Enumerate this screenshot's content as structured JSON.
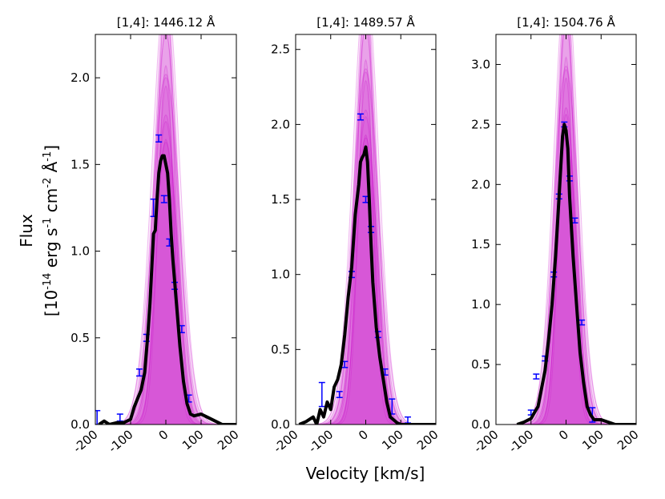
{
  "figure": {
    "xlabel": "Velocity [km/s]",
    "ylabel_line1": "Flux",
    "ylabel_line2_prefix": "[10",
    "ylabel_exp1": "-14",
    "ylabel_mid1": " erg s",
    "ylabel_exp2": "-1",
    "ylabel_mid2": " cm",
    "ylabel_exp3": "-2",
    "ylabel_mid3": " Å",
    "ylabel_exp4": "-1",
    "ylabel_suffix": "]"
  },
  "colors": {
    "model_band": "#cc00cc",
    "observed": "#000000",
    "error_bars": "#0000ff"
  },
  "chart_data": [
    {
      "type": "line",
      "title": "[1,4]: 1446.12 Å",
      "xlim": [
        -200,
        200
      ],
      "ylim": [
        0,
        2.25
      ],
      "xticks": [
        "-200",
        "-100",
        "0",
        "100",
        "200"
      ],
      "yticks": [
        "0.0",
        "0.5",
        "1.0",
        "1.5",
        "2.0"
      ],
      "model_peak": 2.3,
      "model_width": 40,
      "observed": {
        "x": [
          -190,
          -175,
          -160,
          -140,
          -120,
          -100,
          -90,
          -80,
          -70,
          -60,
          -50,
          -45,
          -40,
          -35,
          -30,
          -25,
          -20,
          -15,
          -10,
          -5,
          0,
          5,
          10,
          15,
          20,
          30,
          40,
          50,
          60,
          70,
          80,
          100,
          120,
          140,
          160,
          180,
          200
        ],
        "y": [
          0.0,
          0.02,
          0.0,
          0.01,
          0.01,
          0.03,
          0.1,
          0.15,
          0.2,
          0.3,
          0.55,
          0.7,
          0.9,
          1.1,
          1.12,
          1.3,
          1.45,
          1.52,
          1.55,
          1.55,
          1.5,
          1.45,
          1.3,
          1.1,
          0.95,
          0.7,
          0.45,
          0.25,
          0.12,
          0.06,
          0.05,
          0.06,
          0.04,
          0.02,
          0.0,
          0.0,
          0.0
        ]
      },
      "errorbars": {
        "x": [
          -195,
          -130,
          -75,
          -55,
          -35,
          -20,
          -5,
          10,
          25,
          45,
          65
        ],
        "y": [
          0.04,
          0.04,
          0.3,
          0.5,
          1.25,
          1.65,
          1.3,
          1.05,
          0.8,
          0.55,
          0.15
        ],
        "err": [
          0.04,
          0.02,
          0.02,
          0.02,
          0.05,
          0.02,
          0.02,
          0.02,
          0.02,
          0.02,
          0.02
        ]
      }
    },
    {
      "type": "line",
      "title": "[1,4]: 1489.57 Å",
      "xlim": [
        -200,
        200
      ],
      "ylim": [
        0,
        2.6
      ],
      "xticks": [
        "-200",
        "-100",
        "0",
        "100",
        "200"
      ],
      "yticks": [
        "0.0",
        "0.5",
        "1.0",
        "1.5",
        "2.0",
        "2.5"
      ],
      "model_peak": 2.7,
      "model_width": 38,
      "observed": {
        "x": [
          -190,
          -170,
          -150,
          -140,
          -130,
          -120,
          -110,
          -100,
          -90,
          -80,
          -70,
          -60,
          -50,
          -40,
          -30,
          -20,
          -15,
          -10,
          -5,
          0,
          5,
          10,
          15,
          20,
          30,
          40,
          50,
          60,
          70,
          80,
          90,
          100,
          120,
          140,
          160,
          200
        ],
        "y": [
          0.0,
          0.02,
          0.05,
          0.0,
          0.1,
          0.05,
          0.15,
          0.1,
          0.25,
          0.3,
          0.4,
          0.6,
          0.85,
          1.05,
          1.4,
          1.6,
          1.75,
          1.78,
          1.8,
          1.85,
          1.75,
          1.5,
          1.2,
          0.95,
          0.65,
          0.45,
          0.3,
          0.15,
          0.05,
          0.03,
          0.01,
          0.0,
          0.0,
          0.0,
          0.0,
          0.0
        ]
      },
      "errorbars": {
        "x": [
          -125,
          -75,
          -60,
          -40,
          -15,
          0,
          15,
          35,
          55,
          75,
          120
        ],
        "y": [
          0.2,
          0.2,
          0.4,
          1.0,
          2.05,
          1.5,
          1.3,
          0.6,
          0.35,
          0.12,
          0.03
        ],
        "err": [
          0.08,
          0.02,
          0.02,
          0.02,
          0.02,
          0.02,
          0.02,
          0.02,
          0.02,
          0.05,
          0.02
        ]
      }
    },
    {
      "type": "line",
      "title": "[1,4]: 1504.76 Å",
      "xlim": [
        -200,
        200
      ],
      "ylim": [
        0,
        3.25
      ],
      "xticks": [
        "-200",
        "-100",
        "0",
        "100",
        "200"
      ],
      "yticks": [
        "0.0",
        "0.5",
        "1.0",
        "1.5",
        "2.0",
        "2.5",
        "3.0"
      ],
      "model_peak": 3.4,
      "model_width": 36,
      "observed": {
        "x": [
          -140,
          -120,
          -100,
          -90,
          -80,
          -70,
          -60,
          -50,
          -40,
          -30,
          -20,
          -10,
          -5,
          0,
          5,
          10,
          20,
          30,
          40,
          50,
          60,
          70,
          80,
          100,
          120,
          140,
          160,
          200
        ],
        "y": [
          0.0,
          0.02,
          0.05,
          0.1,
          0.15,
          0.3,
          0.45,
          0.7,
          1.0,
          1.4,
          1.9,
          2.4,
          2.5,
          2.45,
          2.3,
          1.9,
          1.4,
          1.0,
          0.6,
          0.35,
          0.15,
          0.08,
          0.04,
          0.04,
          0.02,
          0.0,
          0.0,
          0.0
        ]
      },
      "errorbars": {
        "x": [
          -100,
          -85,
          -60,
          -35,
          -20,
          -5,
          10,
          25,
          45,
          75
        ],
        "y": [
          0.1,
          0.4,
          0.55,
          1.25,
          1.9,
          2.5,
          2.05,
          1.7,
          0.85,
          0.08
        ],
        "err": [
          0.02,
          0.02,
          0.02,
          0.02,
          0.02,
          0.02,
          0.02,
          0.02,
          0.02,
          0.06
        ]
      }
    }
  ]
}
